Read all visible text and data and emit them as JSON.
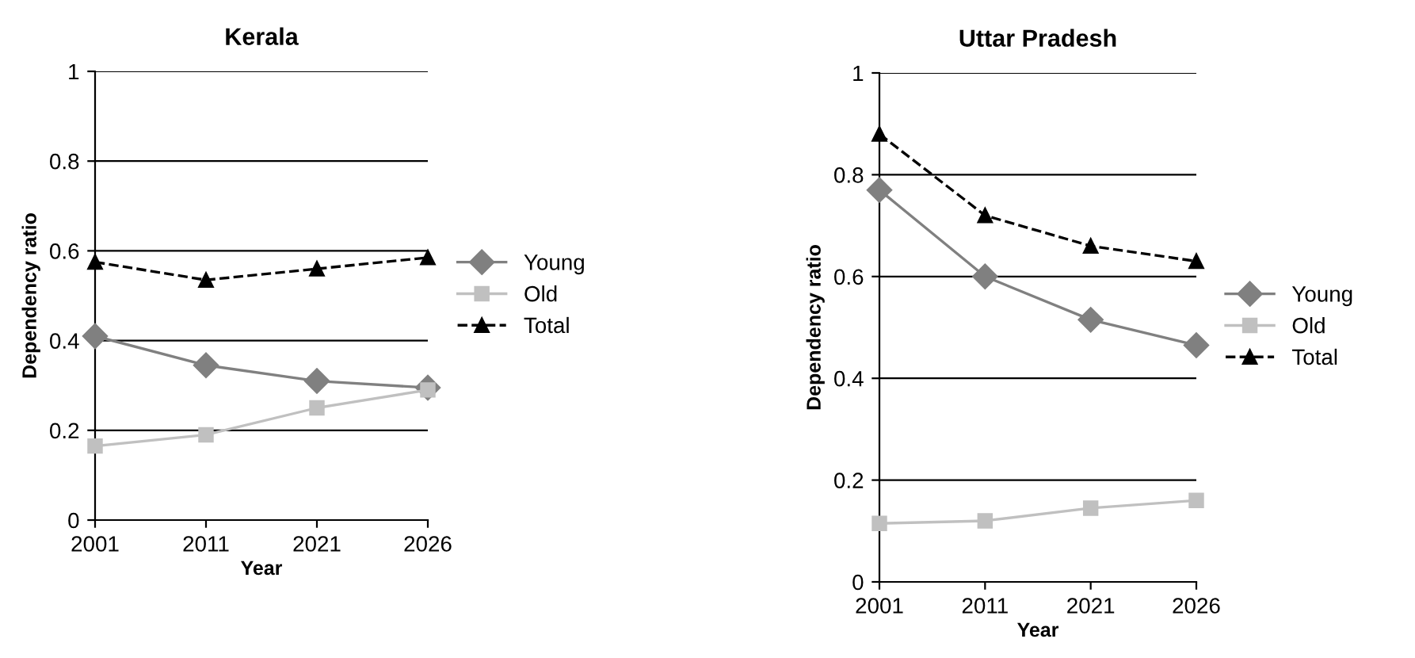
{
  "chart_data": [
    {
      "type": "line",
      "title": "Kerala",
      "xlabel": "Year",
      "ylabel": "Dependency ratio",
      "categories": [
        "2001",
        "2011",
        "2021",
        "2026"
      ],
      "ylim": [
        0,
        1
      ],
      "yticks": [
        0,
        0.2,
        0.4,
        0.6,
        0.8,
        1
      ],
      "grid": "y",
      "legend": "right",
      "series": [
        {
          "name": "Young",
          "color": "#808080",
          "marker": "diamond",
          "line_style": "solid",
          "values": [
            0.41,
            0.345,
            0.31,
            0.295
          ]
        },
        {
          "name": "Old",
          "color": "#c0c0c0",
          "marker": "square",
          "line_style": "solid",
          "values": [
            0.165,
            0.19,
            0.25,
            0.29
          ]
        },
        {
          "name": "Total",
          "color": "#000000",
          "marker": "triangle",
          "line_style": "dashed",
          "values": [
            0.575,
            0.535,
            0.56,
            0.585
          ]
        }
      ]
    },
    {
      "type": "line",
      "title": "Uttar Pradesh",
      "xlabel": "Year",
      "ylabel": "Dependency ratio",
      "categories": [
        "2001",
        "2011",
        "2021",
        "2026"
      ],
      "ylim": [
        0,
        1
      ],
      "yticks": [
        0,
        0.2,
        0.4,
        0.6,
        0.8,
        1
      ],
      "grid": "y",
      "legend": "right",
      "series": [
        {
          "name": "Young",
          "color": "#808080",
          "marker": "diamond",
          "line_style": "solid",
          "values": [
            0.77,
            0.6,
            0.515,
            0.465
          ]
        },
        {
          "name": "Old",
          "color": "#c0c0c0",
          "marker": "square",
          "line_style": "solid",
          "values": [
            0.115,
            0.12,
            0.145,
            0.16
          ]
        },
        {
          "name": "Total",
          "color": "#000000",
          "marker": "triangle",
          "line_style": "dashed",
          "values": [
            0.88,
            0.72,
            0.66,
            0.63
          ]
        }
      ]
    }
  ]
}
